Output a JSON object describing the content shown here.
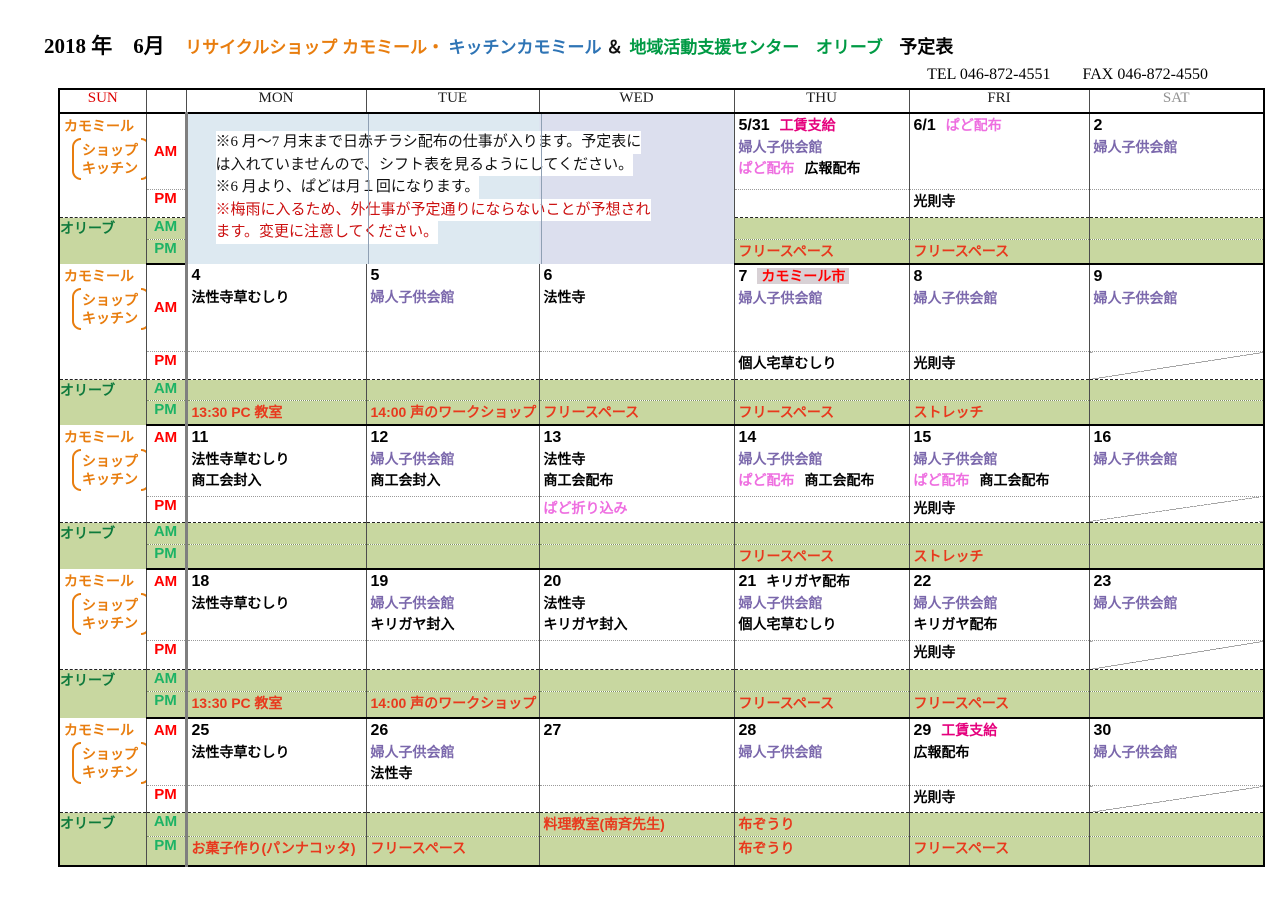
{
  "title": {
    "date": "2018 年　6月",
    "shop_orange": "リサイクルショップ カモミール・",
    "shop_blue": "キッチンカモミール",
    "amp": "＆",
    "center": "地域活動支援センター",
    "olive": "オリーブ",
    "suffix": "予定表"
  },
  "contact": {
    "tel": "TEL  046-872-4551",
    "fax": "FAX  046-872-4550"
  },
  "header": {
    "days": [
      "SUN",
      "MON",
      "TUE",
      "WED",
      "THU",
      "FRI",
      "SAT"
    ]
  },
  "row_labels": {
    "camomile": "カモミール",
    "shop": "ショップ",
    "kitchen": "キッチン",
    "olive": "オリーブ",
    "am": "AM",
    "pm": "PM"
  },
  "notice": {
    "lines": [
      {
        "t": "※6 月～7 月末まで日赤チラシ配布の仕事が入ります。予定表に",
        "c": "black"
      },
      {
        "t": "は入れていませんので、シフト表を見るようにしてください。",
        "c": "black"
      },
      {
        "t": "※6 月より、ぱどは月１回になります。",
        "c": "black"
      },
      {
        "t": "※梅雨に入るため、外仕事が予定通りにならないことが予想され",
        "c": "red"
      },
      {
        "t": "ます。変更に注意してください。",
        "c": "red"
      }
    ]
  },
  "weeks": [
    {
      "notice": true,
      "am": [
        {
          "lines": [
            [
              {
                "t": "5/31",
                "c": "num"
              },
              {
                "t": "工賃支給",
                "c": "crimson"
              }
            ],
            [
              {
                "t": "婦人子供会館",
                "c": "purple"
              }
            ],
            [
              {
                "t": "ぱど配布",
                "c": "pink"
              },
              {
                "t": "広報配布",
                "c": "black"
              }
            ]
          ]
        },
        {
          "lines": [
            [
              {
                "t": "6/1",
                "c": "num"
              },
              {
                "t": "ぱど配布",
                "c": "pink"
              }
            ]
          ]
        },
        {
          "lines": [
            [
              {
                "t": "2",
                "c": "num"
              }
            ],
            [
              {
                "t": "婦人子供会館",
                "c": "purple"
              }
            ]
          ]
        }
      ],
      "pm": [
        null,
        {
          "lines": [
            [
              {
                "t": "光則寺",
                "c": "black"
              }
            ]
          ]
        },
        null
      ],
      "olive_am": [
        {
          "diag": true
        },
        {
          "diag": true
        },
        {
          "diag": true
        }
      ],
      "olive_pm": [
        {
          "lines": [
            [
              {
                "t": "フリースペース",
                "c": "red"
              }
            ]
          ]
        },
        {
          "lines": [
            [
              {
                "t": "フリースペース",
                "c": "red"
              }
            ]
          ]
        },
        {
          "diag": true
        }
      ]
    },
    {
      "notice": false,
      "am": [
        {
          "lines": [
            [
              {
                "t": "4",
                "c": "num"
              }
            ],
            [
              {
                "t": "法性寺草むしり",
                "c": "black"
              }
            ]
          ]
        },
        {
          "lines": [
            [
              {
                "t": "5",
                "c": "num"
              }
            ],
            [
              {
                "t": "婦人子供会館",
                "c": "purple"
              }
            ]
          ]
        },
        {
          "lines": [
            [
              {
                "t": "6",
                "c": "num"
              }
            ],
            [
              {
                "t": "法性寺",
                "c": "black"
              }
            ]
          ]
        },
        {
          "lines": [
            [
              {
                "t": "7",
                "c": "num"
              },
              {
                "t": "カモミール市",
                "c": "mark"
              }
            ],
            [
              {
                "t": "婦人子供会館",
                "c": "purple"
              }
            ]
          ]
        },
        {
          "lines": [
            [
              {
                "t": "8",
                "c": "num"
              }
            ],
            [
              {
                "t": "婦人子供会館",
                "c": "purple"
              }
            ]
          ]
        },
        {
          "lines": [
            [
              {
                "t": "9",
                "c": "num"
              }
            ],
            [
              {
                "t": "婦人子供会館",
                "c": "purple"
              }
            ]
          ]
        }
      ],
      "pm": [
        null,
        null,
        null,
        {
          "lines": [
            [
              {
                "t": "個人宅草むしり",
                "c": "black"
              }
            ]
          ]
        },
        {
          "lines": [
            [
              {
                "t": "光則寺",
                "c": "black"
              }
            ]
          ]
        },
        {
          "diag": true
        }
      ],
      "olive_am": [
        {
          "diag": true
        },
        {
          "diag": true
        },
        {
          "diag": true
        },
        {
          "diag": true
        },
        {
          "diag": true
        },
        {
          "diag": true
        }
      ],
      "olive_pm": [
        {
          "lines": [
            [
              {
                "t": "13:30  PC 教室",
                "c": "red"
              }
            ]
          ]
        },
        {
          "lines": [
            [
              {
                "t": "14:00 声のワークショップ",
                "c": "red"
              }
            ]
          ]
        },
        {
          "lines": [
            [
              {
                "t": "フリースペース",
                "c": "red"
              }
            ]
          ]
        },
        {
          "lines": [
            [
              {
                "t": "フリースペース",
                "c": "red"
              }
            ]
          ]
        },
        {
          "lines": [
            [
              {
                "t": "ストレッチ",
                "c": "red"
              }
            ]
          ]
        },
        {
          "diag": true
        }
      ]
    },
    {
      "notice": false,
      "am": [
        {
          "lines": [
            [
              {
                "t": "11",
                "c": "num"
              }
            ],
            [
              {
                "t": "法性寺草むしり",
                "c": "black"
              }
            ],
            [
              {
                "t": "商工会封入",
                "c": "black"
              }
            ]
          ]
        },
        {
          "lines": [
            [
              {
                "t": "12",
                "c": "num"
              }
            ],
            [
              {
                "t": "婦人子供会館",
                "c": "purple"
              }
            ],
            [
              {
                "t": "商工会封入",
                "c": "black"
              }
            ]
          ]
        },
        {
          "lines": [
            [
              {
                "t": "13",
                "c": "num"
              }
            ],
            [
              {
                "t": "法性寺",
                "c": "black"
              }
            ],
            [
              {
                "t": "商工会配布",
                "c": "black"
              }
            ]
          ]
        },
        {
          "lines": [
            [
              {
                "t": "14",
                "c": "num"
              }
            ],
            [
              {
                "t": "婦人子供会館",
                "c": "purple"
              }
            ],
            [
              {
                "t": "ぱど配布",
                "c": "pink"
              },
              {
                "t": "商工会配布",
                "c": "black"
              }
            ]
          ]
        },
        {
          "lines": [
            [
              {
                "t": "15",
                "c": "num"
              }
            ],
            [
              {
                "t": "婦人子供会館",
                "c": "purple"
              }
            ],
            [
              {
                "t": "ぱど配布",
                "c": "pink"
              },
              {
                "t": "商工会配布",
                "c": "black"
              }
            ]
          ]
        },
        {
          "lines": [
            [
              {
                "t": "16",
                "c": "num"
              }
            ],
            [
              {
                "t": "婦人子供会館",
                "c": "purple"
              }
            ]
          ]
        }
      ],
      "pm": [
        null,
        null,
        {
          "lines": [
            [
              {
                "t": "ぱど折り込み",
                "c": "pink"
              }
            ]
          ]
        },
        null,
        {
          "lines": [
            [
              {
                "t": "光則寺",
                "c": "black"
              }
            ]
          ]
        },
        {
          "diag": true
        }
      ],
      "olive_am": [
        {
          "diag": true
        },
        {
          "diag": true
        },
        {
          "diag": true
        },
        {
          "diag": true
        },
        {
          "diag": true
        },
        {
          "diag": true
        }
      ],
      "olive_pm": [
        {
          "diag": true
        },
        {
          "diag": true
        },
        {
          "diag": true
        },
        {
          "lines": [
            [
              {
                "t": "フリースペース",
                "c": "red"
              }
            ]
          ]
        },
        {
          "lines": [
            [
              {
                "t": "ストレッチ",
                "c": "red"
              }
            ]
          ]
        },
        {
          "diag": true
        }
      ]
    },
    {
      "notice": false,
      "am": [
        {
          "lines": [
            [
              {
                "t": "18",
                "c": "num"
              }
            ],
            [
              {
                "t": "法性寺草むしり",
                "c": "black"
              }
            ]
          ]
        },
        {
          "lines": [
            [
              {
                "t": "19",
                "c": "num"
              }
            ],
            [
              {
                "t": "婦人子供会館",
                "c": "purple"
              }
            ],
            [
              {
                "t": "キリガヤ封入",
                "c": "black"
              }
            ]
          ]
        },
        {
          "lines": [
            [
              {
                "t": "20",
                "c": "num"
              }
            ],
            [
              {
                "t": "法性寺",
                "c": "black"
              }
            ],
            [
              {
                "t": "キリガヤ封入",
                "c": "black"
              }
            ]
          ]
        },
        {
          "lines": [
            [
              {
                "t": "21",
                "c": "num"
              },
              {
                "t": "キリガヤ配布",
                "c": "black"
              }
            ],
            [
              {
                "t": "婦人子供会館",
                "c": "purple"
              }
            ],
            [
              {
                "t": "個人宅草むしり",
                "c": "black"
              }
            ]
          ]
        },
        {
          "lines": [
            [
              {
                "t": "22",
                "c": "num"
              }
            ],
            [
              {
                "t": "婦人子供会館",
                "c": "purple"
              }
            ],
            [
              {
                "t": "キリガヤ配布",
                "c": "black"
              }
            ]
          ]
        },
        {
          "lines": [
            [
              {
                "t": "23",
                "c": "num"
              }
            ],
            [
              {
                "t": "婦人子供会館",
                "c": "purple"
              }
            ]
          ]
        }
      ],
      "pm": [
        null,
        null,
        null,
        null,
        {
          "lines": [
            [
              {
                "t": "光則寺",
                "c": "black"
              }
            ]
          ]
        },
        {
          "diag": true
        }
      ],
      "olive_am": [
        {
          "diag": true
        },
        {
          "diag": true
        },
        {
          "diag": true
        },
        {
          "diag": true
        },
        {
          "diag": true
        },
        {
          "diag": true
        }
      ],
      "olive_pm": [
        {
          "lines": [
            [
              {
                "t": "13:30  PC 教室",
                "c": "red"
              }
            ]
          ]
        },
        {
          "lines": [
            [
              {
                "t": "14:00 声のワークショップ",
                "c": "red"
              }
            ]
          ]
        },
        {
          "diag": true
        },
        {
          "lines": [
            [
              {
                "t": "フリースペース",
                "c": "red"
              }
            ]
          ]
        },
        {
          "lines": [
            [
              {
                "t": "フリースペース",
                "c": "red"
              }
            ]
          ]
        },
        {
          "diag": true
        }
      ]
    },
    {
      "notice": false,
      "am": [
        {
          "lines": [
            [
              {
                "t": "25",
                "c": "num"
              }
            ],
            [
              {
                "t": "法性寺草むしり",
                "c": "black"
              }
            ]
          ]
        },
        {
          "lines": [
            [
              {
                "t": "26",
                "c": "num"
              }
            ],
            [
              {
                "t": "婦人子供会館",
                "c": "purple"
              }
            ],
            [
              {
                "t": "法性寺",
                "c": "black"
              }
            ]
          ]
        },
        {
          "lines": [
            [
              {
                "t": "27",
                "c": "num"
              }
            ]
          ]
        },
        {
          "lines": [
            [
              {
                "t": "28",
                "c": "num"
              }
            ],
            [
              {
                "t": "婦人子供会館",
                "c": "purple"
              }
            ]
          ]
        },
        {
          "lines": [
            [
              {
                "t": "29",
                "c": "num"
              },
              {
                "t": "工賃支給",
                "c": "crimson"
              }
            ],
            [
              {
                "t": "広報配布",
                "c": "black"
              }
            ]
          ]
        },
        {
          "lines": [
            [
              {
                "t": "30",
                "c": "num"
              }
            ],
            [
              {
                "t": "婦人子供会館",
                "c": "purple"
              }
            ]
          ]
        }
      ],
      "pm": [
        null,
        null,
        null,
        null,
        {
          "lines": [
            [
              {
                "t": "光則寺",
                "c": "black"
              }
            ]
          ]
        },
        {
          "diag": true
        }
      ],
      "olive_am": [
        {
          "diag": true
        },
        {
          "diag": true
        },
        {
          "lines": [
            [
              {
                "t": "料理教室(南斉先生)",
                "c": "red"
              }
            ]
          ]
        },
        {
          "lines": [
            [
              {
                "t": "布ぞうり",
                "c": "red"
              }
            ]
          ]
        },
        {
          "diag": true
        },
        {
          "diag": true
        }
      ],
      "olive_pm": [
        {
          "lines": [
            [
              {
                "t": "お菓子作り(パンナコッタ)",
                "c": "red"
              }
            ]
          ]
        },
        {
          "lines": [
            [
              {
                "t": "フリースペース",
                "c": "red"
              }
            ]
          ]
        },
        {
          "diag": true
        },
        {
          "lines": [
            [
              {
                "t": "布ぞうり",
                "c": "red"
              }
            ]
          ]
        },
        {
          "lines": [
            [
              {
                "t": "フリースペース",
                "c": "red"
              }
            ]
          ]
        },
        {
          "diag": true
        }
      ]
    }
  ],
  "colors": {
    "camomile_orange": "#e87d0e",
    "title_blue": "#2e74b5",
    "center_green": "#009a44",
    "olive_row_green": "#c8d7a0",
    "notice_blue": "#dde9f1",
    "notice_lavender": "#dcdfee",
    "event_purple": "#7b68ac",
    "event_pink": "#ee6ee0",
    "event_crimson": "#e5007d",
    "event_red": "#e8391d",
    "label_red": "#ff0000",
    "label_green": "#1db365"
  }
}
